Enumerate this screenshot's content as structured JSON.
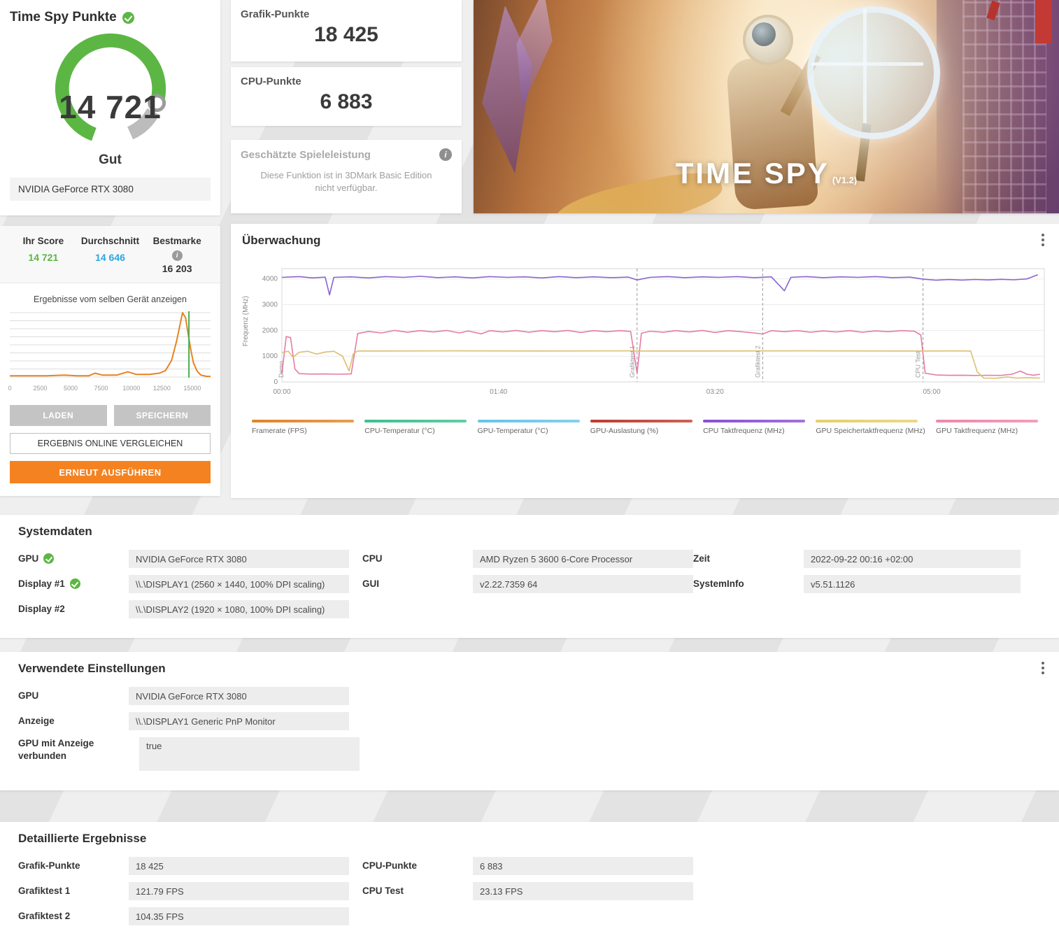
{
  "colors": {
    "green": "#5cb644",
    "blue": "#2ba7df",
    "orange": "#f58220",
    "panel": "#ffffff"
  },
  "score_panel": {
    "title": "Time Spy Punkte",
    "score": "14 721",
    "grade": "Gut",
    "gpu_name": "NVIDIA GeForce RTX 3080",
    "stats": {
      "your_score_label": "Ihr Score",
      "your_score": "14 721",
      "average_label": "Durchschnitt",
      "average": "14 646",
      "best_label": "Bestmarke",
      "best": "16 203"
    },
    "buttons": {
      "load": "LADEN",
      "save": "SPEICHERN",
      "compare": "ERGEBNIS ONLINE VERGLEICHEN",
      "rerun": "ERNEUT AUSFÜHREN"
    }
  },
  "score_cards": {
    "graphics_label": "Grafik-Punkte",
    "graphics_value": "18 425",
    "cpu_label": "CPU-Punkte",
    "cpu_value": "6 883"
  },
  "estimated_card": {
    "title": "Geschätzte Spieleleistung",
    "body": "Diese Funktion ist in 3DMark Basic Edition nicht verfügbar."
  },
  "hero": {
    "title": "TIME SPY",
    "version": "(V1.2)"
  },
  "chart_data": [
    {
      "id": "score_distribution",
      "type": "area",
      "title": "Ergebnisse vom selben Gerät anzeigen",
      "xlim": [
        0,
        16500
      ],
      "xticks": [
        0,
        2500,
        5000,
        7500,
        10000,
        12500,
        15000
      ],
      "marker_value": 14721,
      "marker_color": "#4caf50",
      "line_color": "#e8821e",
      "points": [
        [
          0,
          2
        ],
        [
          1500,
          2
        ],
        [
          3000,
          2
        ],
        [
          4500,
          3
        ],
        [
          5500,
          2
        ],
        [
          6500,
          2
        ],
        [
          7000,
          6
        ],
        [
          7600,
          3
        ],
        [
          8800,
          3
        ],
        [
          9700,
          8
        ],
        [
          10400,
          4
        ],
        [
          11500,
          4
        ],
        [
          12300,
          6
        ],
        [
          12800,
          10
        ],
        [
          13300,
          26
        ],
        [
          13700,
          55
        ],
        [
          14000,
          82
        ],
        [
          14200,
          100
        ],
        [
          14450,
          92
        ],
        [
          14700,
          62
        ],
        [
          14900,
          40
        ],
        [
          15100,
          22
        ],
        [
          15400,
          9
        ],
        [
          15700,
          3
        ],
        [
          16200,
          1
        ],
        [
          16500,
          1
        ]
      ]
    },
    {
      "id": "monitoring",
      "type": "line",
      "title": "Überwachung",
      "ylabel": "Frequenz (MHz)",
      "ylim": [
        0,
        4400
      ],
      "yticks": [
        0,
        1000,
        2000,
        3000,
        4000
      ],
      "x_seconds_max": 352,
      "xticks": [
        {
          "t": 0,
          "label": "00:00"
        },
        {
          "t": 100,
          "label": "01:40"
        },
        {
          "t": 200,
          "label": "03:20"
        },
        {
          "t": 300,
          "label": "05:00"
        }
      ],
      "sections": [
        {
          "label": "Demo",
          "t": 2
        },
        {
          "label": "Grafiktest 1",
          "t": 164
        },
        {
          "label": "Grafiktest 2",
          "t": 222
        },
        {
          "label": "CPU Test",
          "t": 296
        }
      ],
      "series": [
        {
          "name": "CPU Taktfrequenz (MHz)",
          "color": "#8a63d2",
          "points": [
            [
              0,
              4060
            ],
            [
              8,
              4090
            ],
            [
              14,
              4040
            ],
            [
              20,
              4070
            ],
            [
              22,
              3380
            ],
            [
              24,
              4060
            ],
            [
              32,
              4080
            ],
            [
              40,
              4040
            ],
            [
              48,
              4090
            ],
            [
              56,
              4060
            ],
            [
              64,
              4100
            ],
            [
              72,
              4050
            ],
            [
              80,
              4080
            ],
            [
              88,
              4040
            ],
            [
              96,
              4090
            ],
            [
              104,
              4060
            ],
            [
              112,
              4080
            ],
            [
              120,
              4040
            ],
            [
              128,
              4090
            ],
            [
              136,
              4050
            ],
            [
              144,
              4080
            ],
            [
              152,
              4050
            ],
            [
              160,
              4070
            ],
            [
              164,
              3960
            ],
            [
              170,
              4060
            ],
            [
              178,
              4090
            ],
            [
              186,
              4050
            ],
            [
              194,
              4080
            ],
            [
              202,
              4060
            ],
            [
              210,
              4090
            ],
            [
              218,
              4050
            ],
            [
              226,
              4080
            ],
            [
              232,
              3540
            ],
            [
              235,
              4060
            ],
            [
              242,
              4090
            ],
            [
              250,
              4050
            ],
            [
              258,
              4080
            ],
            [
              266,
              4060
            ],
            [
              274,
              4090
            ],
            [
              282,
              4050
            ],
            [
              290,
              4070
            ],
            [
              296,
              3990
            ],
            [
              302,
              3950
            ],
            [
              308,
              3975
            ],
            [
              314,
              3955
            ],
            [
              320,
              3980
            ],
            [
              326,
              3960
            ],
            [
              332,
              3985
            ],
            [
              338,
              3965
            ],
            [
              344,
              4000
            ],
            [
              349,
              4160
            ]
          ]
        },
        {
          "name": "GPU Taktfrequenz (MHz)",
          "color": "#e57ca4",
          "points": [
            [
              0,
              320
            ],
            [
              2,
              1760
            ],
            [
              4,
              1720
            ],
            [
              6,
              500
            ],
            [
              8,
              320
            ],
            [
              14,
              305
            ],
            [
              20,
              310
            ],
            [
              26,
              300
            ],
            [
              32,
              310
            ],
            [
              35,
              1880
            ],
            [
              40,
              1960
            ],
            [
              46,
              1900
            ],
            [
              52,
              2000
            ],
            [
              58,
              1930
            ],
            [
              64,
              1990
            ],
            [
              70,
              1940
            ],
            [
              76,
              2000
            ],
            [
              82,
              1900
            ],
            [
              86,
              1980
            ],
            [
              92,
              1870
            ],
            [
              96,
              1990
            ],
            [
              102,
              1940
            ],
            [
              108,
              2000
            ],
            [
              114,
              1930
            ],
            [
              120,
              1990
            ],
            [
              126,
              1950
            ],
            [
              132,
              2000
            ],
            [
              138,
              1920
            ],
            [
              144,
              1990
            ],
            [
              150,
              1950
            ],
            [
              156,
              1990
            ],
            [
              161,
              1960
            ],
            [
              164,
              330
            ],
            [
              166,
              1890
            ],
            [
              170,
              1970
            ],
            [
              176,
              1930
            ],
            [
              182,
              1990
            ],
            [
              188,
              1940
            ],
            [
              194,
              2000
            ],
            [
              200,
              1920
            ],
            [
              206,
              1990
            ],
            [
              212,
              1950
            ],
            [
              218,
              1900
            ],
            [
              222,
              1860
            ],
            [
              226,
              1990
            ],
            [
              232,
              1950
            ],
            [
              238,
              1990
            ],
            [
              244,
              1930
            ],
            [
              250,
              1980
            ],
            [
              256,
              1940
            ],
            [
              262,
              1990
            ],
            [
              268,
              1930
            ],
            [
              274,
              1980
            ],
            [
              280,
              1950
            ],
            [
              286,
              1990
            ],
            [
              292,
              1970
            ],
            [
              295,
              1820
            ],
            [
              297,
              340
            ],
            [
              302,
              270
            ],
            [
              308,
              255
            ],
            [
              314,
              260
            ],
            [
              320,
              250
            ],
            [
              326,
              258
            ],
            [
              332,
              252
            ],
            [
              337,
              300
            ],
            [
              341,
              420
            ],
            [
              344,
              300
            ],
            [
              347,
              260
            ],
            [
              350,
              300
            ]
          ]
        },
        {
          "name": "GPU Speichertaktfrequenz (MHz)",
          "color": "#ddbe6e",
          "points": [
            [
              0,
              1140
            ],
            [
              3,
              1190
            ],
            [
              5,
              960
            ],
            [
              8,
              1150
            ],
            [
              12,
              1190
            ],
            [
              16,
              1080
            ],
            [
              20,
              1160
            ],
            [
              24,
              1190
            ],
            [
              28,
              1000
            ],
            [
              31,
              430
            ],
            [
              33,
              1100
            ],
            [
              35,
              1200
            ],
            [
              50,
              1200
            ],
            [
              80,
              1205
            ],
            [
              120,
              1200
            ],
            [
              160,
              1205
            ],
            [
              164,
              1200
            ],
            [
              200,
              1200
            ],
            [
              240,
              1205
            ],
            [
              280,
              1200
            ],
            [
              296,
              1200
            ],
            [
              310,
              1202
            ],
            [
              318,
              1200
            ],
            [
              321,
              400
            ],
            [
              324,
              150
            ],
            [
              330,
              145
            ],
            [
              335,
              195
            ],
            [
              339,
              150
            ],
            [
              344,
              165
            ],
            [
              350,
              150
            ]
          ]
        }
      ],
      "legend": [
        {
          "label": "Framerate (FPS)",
          "color": "#e08427"
        },
        {
          "label": "CPU-Temperatur (°C)",
          "color": "#3cc08e"
        },
        {
          "label": "GPU-Temperatur (°C)",
          "color": "#66c4ea"
        },
        {
          "label": "GPU-Auslastung (%)",
          "color": "#bf3b2f"
        },
        {
          "label": "CPU Taktfrequenz (MHz)",
          "color": "#8a4fd3"
        },
        {
          "label": "GPU Speichertaktfrequenz (MHz)",
          "color": "#e5cf6b"
        },
        {
          "label": "GPU Taktfrequenz (MHz)",
          "color": "#ee86ad"
        }
      ]
    }
  ],
  "systemdata": {
    "title": "Systemdaten",
    "col1": [
      {
        "label": "GPU",
        "value": "NVIDIA GeForce RTX 3080"
      },
      {
        "label": "Display #1",
        "value": "\\\\.\\DISPLAY1 (2560 × 1440, 100% DPI scaling)"
      },
      {
        "label": "Display #2",
        "value": "\\\\.\\DISPLAY2 (1920 × 1080, 100% DPI scaling)"
      }
    ],
    "col2": [
      {
        "label": "CPU",
        "value": "AMD Ryzen 5 3600 6-Core Processor"
      },
      {
        "label": "GUI",
        "value": "v2.22.7359 64"
      }
    ],
    "col3": [
      {
        "label": "Zeit",
        "value": "2022-09-22 00:16 +02:00"
      },
      {
        "label": "SystemInfo",
        "value": "v5.51.1126"
      }
    ]
  },
  "settings": {
    "title": "Verwendete Einstellungen",
    "rows": [
      {
        "label": "GPU",
        "value": "NVIDIA GeForce RTX 3080"
      },
      {
        "label": "Anzeige",
        "value": "\\\\.\\DISPLAY1 Generic PnP Monitor"
      },
      {
        "label": "GPU mit Anzeige verbunden",
        "value": "true"
      }
    ]
  },
  "detailed": {
    "title": "Detaillierte Ergebnisse",
    "left": [
      {
        "label": "Grafik-Punkte",
        "value": "18 425"
      },
      {
        "label": "Grafiktest 1",
        "value": "121.79 FPS"
      },
      {
        "label": "Grafiktest 2",
        "value": "104.35 FPS"
      }
    ],
    "right": [
      {
        "label": "CPU-Punkte",
        "value": "6 883"
      },
      {
        "label": "CPU Test",
        "value": "23.13 FPS"
      }
    ]
  }
}
